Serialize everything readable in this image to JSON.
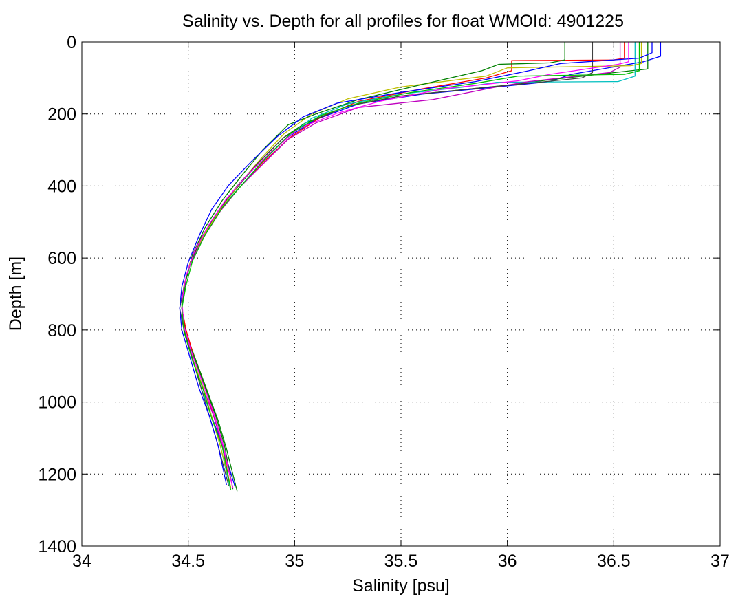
{
  "chart_data": {
    "type": "line",
    "title": "Salinity vs. Depth for all profiles for float WMOId: 4901225",
    "xlabel": "Salinity [psu]",
    "ylabel": "Depth [m]",
    "xlim": [
      34,
      37
    ],
    "ylim": [
      0,
      1400
    ],
    "y_reversed": true,
    "grid": true,
    "x_ticks": [
      34,
      34.5,
      35,
      35.5,
      36,
      36.5,
      37
    ],
    "x_tick_labels": [
      "34",
      "34.5",
      "35",
      "35.5",
      "36",
      "36.5",
      "37"
    ],
    "y_ticks": [
      0,
      200,
      400,
      600,
      800,
      1000,
      1200,
      1400
    ],
    "y_tick_labels": [
      "0",
      "200",
      "400",
      "600",
      "800",
      "1000",
      "1200",
      "1400"
    ],
    "series": [
      {
        "color": "#0000ff",
        "points": [
          [
            36.72,
            0
          ],
          [
            36.72,
            40
          ],
          [
            36.64,
            55
          ],
          [
            36.3,
            90
          ],
          [
            36.2,
            110
          ],
          [
            36.0,
            122
          ],
          [
            35.6,
            145
          ],
          [
            35.3,
            172
          ],
          [
            35.1,
            215
          ],
          [
            34.95,
            272
          ],
          [
            34.84,
            338
          ],
          [
            34.74,
            405
          ],
          [
            34.65,
            470
          ],
          [
            34.57,
            545
          ],
          [
            34.51,
            615
          ],
          [
            34.48,
            680
          ],
          [
            34.47,
            740
          ],
          [
            34.48,
            800
          ],
          [
            34.52,
            880
          ],
          [
            34.57,
            960
          ],
          [
            34.61,
            1040
          ],
          [
            34.66,
            1120
          ],
          [
            34.72,
            1235
          ]
        ]
      },
      {
        "color": "#008000",
        "points": [
          [
            36.66,
            0
          ],
          [
            36.66,
            75
          ],
          [
            36.58,
            80
          ],
          [
            36.2,
            105
          ],
          [
            36.0,
            120
          ],
          [
            35.5,
            150
          ],
          [
            35.25,
            178
          ],
          [
            35.05,
            225
          ],
          [
            34.95,
            265
          ],
          [
            34.83,
            335
          ],
          [
            34.73,
            405
          ],
          [
            34.64,
            470
          ],
          [
            34.57,
            545
          ],
          [
            34.51,
            615
          ],
          [
            34.48,
            680
          ],
          [
            34.47,
            740
          ],
          [
            34.49,
            810
          ],
          [
            34.54,
            890
          ],
          [
            34.59,
            970
          ],
          [
            34.64,
            1050
          ],
          [
            34.68,
            1130
          ],
          [
            34.73,
            1248
          ]
        ]
      },
      {
        "color": "#ff0000",
        "points": [
          [
            36.55,
            0
          ],
          [
            36.55,
            45
          ],
          [
            36.5,
            50
          ],
          [
            36.02,
            52
          ],
          [
            36.02,
            80
          ],
          [
            35.9,
            100
          ],
          [
            35.6,
            130
          ],
          [
            35.3,
            165
          ],
          [
            35.12,
            210
          ],
          [
            34.98,
            265
          ],
          [
            34.85,
            335
          ],
          [
            34.74,
            405
          ],
          [
            34.65,
            470
          ],
          [
            34.57,
            545
          ],
          [
            34.51,
            615
          ],
          [
            34.48,
            680
          ],
          [
            34.47,
            740
          ],
          [
            34.49,
            800
          ],
          [
            34.53,
            880
          ],
          [
            34.58,
            960
          ],
          [
            34.62,
            1040
          ],
          [
            34.66,
            1120
          ],
          [
            34.7,
            1240
          ]
        ]
      },
      {
        "color": "#00bfbf",
        "points": [
          [
            36.6,
            0
          ],
          [
            36.6,
            95
          ],
          [
            36.52,
            110
          ],
          [
            35.95,
            112
          ],
          [
            35.8,
            125
          ],
          [
            35.5,
            145
          ],
          [
            35.25,
            172
          ],
          [
            35.08,
            212
          ],
          [
            34.96,
            268
          ],
          [
            34.84,
            338
          ],
          [
            34.74,
            405
          ],
          [
            34.64,
            470
          ],
          [
            34.57,
            545
          ],
          [
            34.51,
            615
          ],
          [
            34.48,
            680
          ],
          [
            34.47,
            740
          ],
          [
            34.48,
            800
          ],
          [
            34.52,
            880
          ],
          [
            34.56,
            960
          ],
          [
            34.61,
            1040
          ],
          [
            34.65,
            1120
          ],
          [
            34.7,
            1245
          ]
        ]
      },
      {
        "color": "#bf00bf",
        "points": [
          [
            36.53,
            0
          ],
          [
            36.53,
            70
          ],
          [
            36.48,
            85
          ],
          [
            36.1,
            110
          ],
          [
            35.95,
            125
          ],
          [
            35.65,
            160
          ],
          [
            35.3,
            182
          ],
          [
            35.1,
            225
          ],
          [
            34.97,
            270
          ],
          [
            34.85,
            340
          ],
          [
            34.74,
            405
          ],
          [
            34.65,
            470
          ],
          [
            34.57,
            545
          ],
          [
            34.51,
            615
          ],
          [
            34.48,
            680
          ],
          [
            34.47,
            740
          ],
          [
            34.48,
            800
          ],
          [
            34.52,
            880
          ],
          [
            34.57,
            960
          ],
          [
            34.62,
            1040
          ],
          [
            34.66,
            1120
          ],
          [
            34.71,
            1238
          ]
        ]
      },
      {
        "color": "#bfbf00",
        "points": [
          [
            36.63,
            0
          ],
          [
            36.63,
            60
          ],
          [
            36.58,
            66
          ],
          [
            36.0,
            72
          ],
          [
            35.9,
            95
          ],
          [
            35.5,
            125
          ],
          [
            35.25,
            158
          ],
          [
            35.08,
            200
          ],
          [
            34.95,
            255
          ],
          [
            34.84,
            325
          ],
          [
            34.74,
            395
          ],
          [
            34.65,
            465
          ],
          [
            34.57,
            540
          ],
          [
            34.51,
            610
          ],
          [
            34.48,
            675
          ],
          [
            34.47,
            735
          ],
          [
            34.48,
            800
          ],
          [
            34.52,
            880
          ],
          [
            34.57,
            960
          ],
          [
            34.61,
            1040
          ],
          [
            34.65,
            1120
          ],
          [
            34.7,
            1236
          ]
        ]
      },
      {
        "color": "#404040",
        "points": [
          [
            36.4,
            0
          ],
          [
            36.4,
            85
          ],
          [
            36.35,
            100
          ],
          [
            36.15,
            112
          ],
          [
            35.9,
            126
          ],
          [
            35.5,
            150
          ],
          [
            35.25,
            178
          ],
          [
            35.08,
            220
          ],
          [
            34.95,
            265
          ],
          [
            34.83,
            335
          ],
          [
            34.73,
            400
          ],
          [
            34.64,
            470
          ],
          [
            34.56,
            545
          ],
          [
            34.51,
            615
          ],
          [
            34.48,
            680
          ],
          [
            34.46,
            740
          ],
          [
            34.48,
            800
          ],
          [
            34.52,
            880
          ],
          [
            34.56,
            960
          ],
          [
            34.6,
            1040
          ],
          [
            34.64,
            1120
          ],
          [
            34.69,
            1232
          ]
        ]
      },
      {
        "color": "#008000",
        "points": [
          [
            36.27,
            0
          ],
          [
            36.27,
            50
          ],
          [
            36.2,
            58
          ],
          [
            35.96,
            62
          ],
          [
            35.88,
            80
          ],
          [
            35.6,
            118
          ],
          [
            35.3,
            160
          ],
          [
            35.1,
            200
          ],
          [
            34.97,
            230
          ],
          [
            34.85,
            300
          ],
          [
            34.75,
            372
          ],
          [
            34.66,
            440
          ],
          [
            34.58,
            515
          ],
          [
            34.52,
            590
          ],
          [
            34.49,
            660
          ],
          [
            34.47,
            730
          ],
          [
            34.48,
            800
          ],
          [
            34.53,
            880
          ],
          [
            34.58,
            960
          ],
          [
            34.63,
            1040
          ],
          [
            34.67,
            1120
          ],
          [
            34.71,
            1242
          ]
        ]
      },
      {
        "color": "#0000ff",
        "points": [
          [
            36.68,
            0
          ],
          [
            36.68,
            30
          ],
          [
            36.62,
            45
          ],
          [
            36.25,
            60
          ],
          [
            36.1,
            80
          ],
          [
            35.85,
            110
          ],
          [
            35.5,
            140
          ],
          [
            35.2,
            170
          ],
          [
            35.04,
            208
          ],
          [
            34.92,
            262
          ],
          [
            34.8,
            330
          ],
          [
            34.69,
            398
          ],
          [
            34.61,
            465
          ],
          [
            34.55,
            540
          ],
          [
            34.5,
            612
          ],
          [
            34.47,
            680
          ],
          [
            34.46,
            740
          ],
          [
            34.47,
            800
          ],
          [
            34.51,
            880
          ],
          [
            34.55,
            960
          ],
          [
            34.6,
            1040
          ],
          [
            34.64,
            1120
          ],
          [
            34.68,
            1230
          ]
        ]
      },
      {
        "color": "#ff00ff",
        "points": [
          [
            36.57,
            0
          ],
          [
            36.57,
            55
          ],
          [
            36.52,
            62
          ],
          [
            36.2,
            90
          ],
          [
            36.05,
            108
          ],
          [
            35.7,
            130
          ],
          [
            35.4,
            165
          ],
          [
            35.2,
            198
          ],
          [
            35.02,
            240
          ],
          [
            34.9,
            300
          ],
          [
            34.78,
            368
          ],
          [
            34.68,
            435
          ],
          [
            34.6,
            505
          ],
          [
            34.53,
            580
          ],
          [
            34.49,
            650
          ],
          [
            34.47,
            720
          ],
          [
            34.48,
            790
          ],
          [
            34.52,
            870
          ],
          [
            34.57,
            950
          ],
          [
            34.62,
            1030
          ],
          [
            34.66,
            1110
          ],
          [
            34.71,
            1240
          ]
        ]
      },
      {
        "color": "#00c000",
        "points": [
          [
            36.62,
            0
          ],
          [
            36.62,
            80
          ],
          [
            36.55,
            90
          ],
          [
            36.05,
            95
          ],
          [
            35.85,
            115
          ],
          [
            35.55,
            140
          ],
          [
            35.3,
            170
          ],
          [
            35.12,
            205
          ],
          [
            34.98,
            255
          ],
          [
            34.86,
            325
          ],
          [
            34.76,
            392
          ],
          [
            34.66,
            460
          ],
          [
            34.58,
            535
          ],
          [
            34.52,
            608
          ],
          [
            34.49,
            675
          ],
          [
            34.47,
            740
          ],
          [
            34.48,
            805
          ],
          [
            34.52,
            885
          ],
          [
            34.57,
            965
          ],
          [
            34.61,
            1045
          ],
          [
            34.66,
            1125
          ],
          [
            34.7,
            1244
          ]
        ]
      }
    ]
  }
}
